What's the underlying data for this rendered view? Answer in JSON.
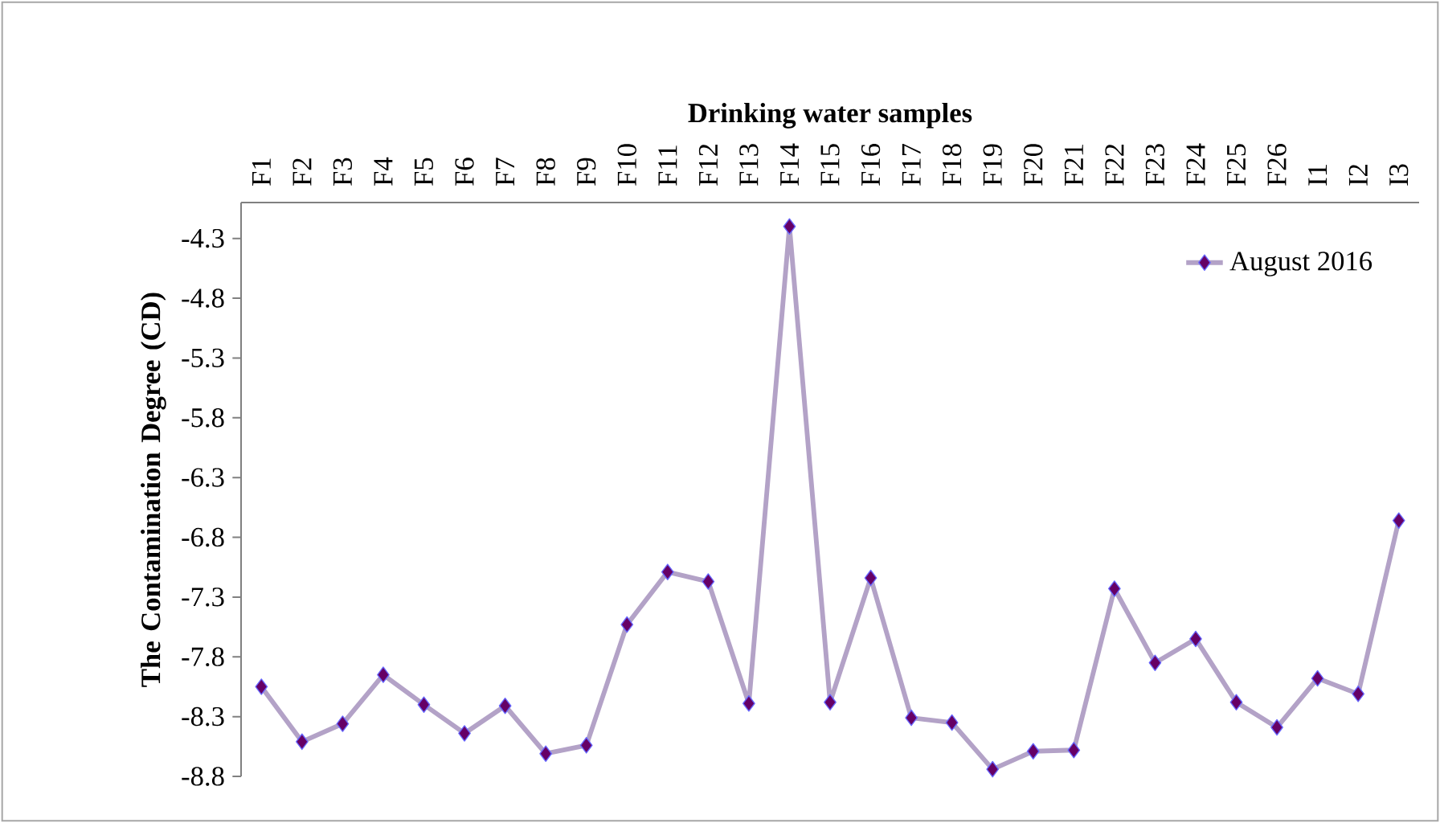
{
  "chart_data": {
    "type": "line",
    "xlabel": "Drinking water samples",
    "ylabel": "The Contamination Degree (CD)",
    "categories": [
      "F1",
      "F2",
      "F3",
      "F4",
      "F5",
      "F6",
      "F7",
      "F8",
      "F9",
      "F10",
      "F11",
      "F12",
      "F13",
      "F14",
      "F15",
      "F16",
      "F17",
      "F18",
      "F19",
      "F20",
      "F21",
      "F22",
      "F23",
      "F24",
      "F25",
      "F26",
      "I1",
      "I2",
      "I3"
    ],
    "series": [
      {
        "name": "August 2016",
        "color": "#b3a2c7",
        "values": [
          -8.05,
          -8.51,
          -8.36,
          -7.95,
          -8.2,
          -8.44,
          -8.21,
          -8.61,
          -8.54,
          -7.53,
          -7.09,
          -7.17,
          -8.19,
          -4.2,
          -8.18,
          -7.14,
          -8.31,
          -8.35,
          -8.74,
          -8.59,
          -8.58,
          -7.23,
          -7.85,
          -7.65,
          -8.18,
          -8.39,
          -7.98,
          -8.11,
          -6.66
        ]
      }
    ],
    "ylim": [
      -8.8,
      -4.0
    ],
    "yticks": [
      -4.3,
      -4.8,
      -5.3,
      -5.8,
      -6.3,
      -6.8,
      -7.3,
      -7.8,
      -8.3,
      -8.8
    ],
    "marker": "diamond",
    "line_style": "solid",
    "legend": "top right"
  }
}
